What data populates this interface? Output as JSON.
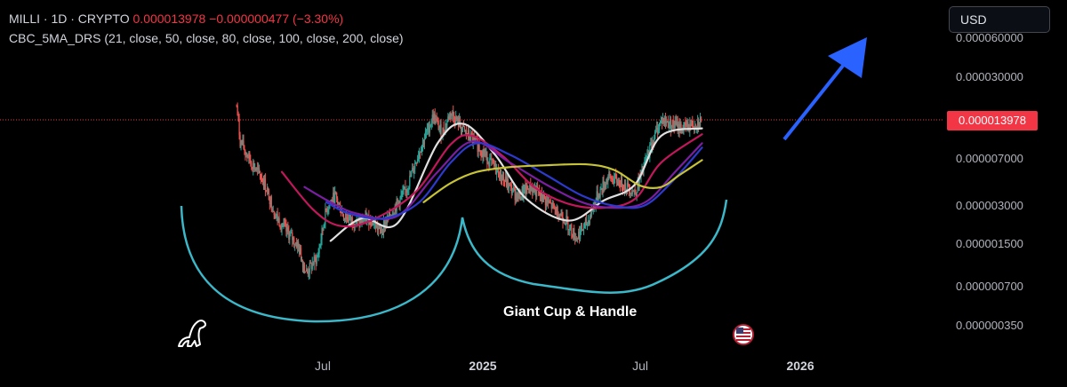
{
  "legend": {
    "symbol": "MILLI · 1D · CRYPTO",
    "price": "0.000013978",
    "change": "−0.000000477 (−3.30%)",
    "indicator": "CBC_5MA_DRS (21, close, 50, close, 80, close, 100, close, 200, close)"
  },
  "currency_button": "USD",
  "price_badge": "0.000013978",
  "annotation": "Giant Cup & Handle",
  "colors": {
    "background": "#000000",
    "up": "#26a69a",
    "down": "#ef5350",
    "price_line": "#f23645",
    "ma21": "#e0e0e0",
    "ma50": "#c2185b",
    "ma80": "#7b1fa2",
    "ma100": "#2c3acf",
    "ma200": "#c7c336",
    "cup": "#3bb8c9",
    "arrow": "#2962ff"
  },
  "icons": {
    "logo": "tradingview-dino-icon",
    "flag": "us-flag-event-icon",
    "arrow": "up-arrow-icon"
  },
  "chart_data": {
    "type": "candlestick",
    "scale": "log",
    "last_price": 1.3978e-05,
    "y_ticks": [
      "0.000060000",
      "0.000030000",
      "0.000007000",
      "0.000003000",
      "0.000001500",
      "0.000000700",
      "0.000000350"
    ],
    "y_tick_values": [
      6e-05,
      3e-05,
      7e-06,
      3e-06,
      1.5e-06,
      7e-07,
      3.5e-07
    ],
    "x_ticks": [
      {
        "label": "Jul",
        "bold": false,
        "date": "2024-07-01"
      },
      {
        "label": "2025",
        "bold": true,
        "date": "2025-01-01"
      },
      {
        "label": "Jul",
        "bold": false,
        "date": "2025-07-01"
      },
      {
        "label": "2026",
        "bold": true,
        "date": "2026-01-01"
      }
    ],
    "price_path": [
      [
        "2024-03-24",
        1.8e-05
      ],
      [
        "2024-03-28",
        9.5e-06
      ],
      [
        "2024-04-10",
        6.5e-06
      ],
      [
        "2024-04-25",
        4.5e-06
      ],
      [
        "2024-05-08",
        2.5e-06
      ],
      [
        "2024-05-20",
        1.9e-06
      ],
      [
        "2024-06-02",
        1.5e-06
      ],
      [
        "2024-06-12",
        9e-07
      ],
      [
        "2024-06-25",
        1.2e-06
      ],
      [
        "2024-07-05",
        2.8e-06
      ],
      [
        "2024-07-15",
        3.6e-06
      ],
      [
        "2024-07-25",
        2.5e-06
      ],
      [
        "2024-08-10",
        2.2e-06
      ],
      [
        "2024-08-25",
        2.4e-06
      ],
      [
        "2024-09-05",
        1.9e-06
      ],
      [
        "2024-09-20",
        2.8e-06
      ],
      [
        "2024-10-05",
        4e-06
      ],
      [
        "2024-10-20",
        8e-06
      ],
      [
        "2024-11-05",
        1.5e-05
      ],
      [
        "2024-11-15",
        1.1e-05
      ],
      [
        "2024-11-25",
        1.6e-05
      ],
      [
        "2024-12-10",
        1.15e-05
      ],
      [
        "2024-12-25",
        9e-06
      ],
      [
        "2025-01-10",
        6.5e-06
      ],
      [
        "2025-01-25",
        4.8e-06
      ],
      [
        "2025-02-10",
        3.5e-06
      ],
      [
        "2025-02-25",
        4.2e-06
      ],
      [
        "2025-03-10",
        3.5e-06
      ],
      [
        "2025-03-25",
        2.8e-06
      ],
      [
        "2025-04-05",
        2.4e-06
      ],
      [
        "2025-04-18",
        1.7e-06
      ],
      [
        "2025-05-01",
        2.2e-06
      ],
      [
        "2025-05-12",
        3.5e-06
      ],
      [
        "2025-05-25",
        5e-06
      ],
      [
        "2025-06-10",
        4.5e-06
      ],
      [
        "2025-06-25",
        3.8e-06
      ],
      [
        "2025-07-05",
        6e-06
      ],
      [
        "2025-07-15",
        9.5e-06
      ],
      [
        "2025-07-25",
        1.4e-05
      ],
      [
        "2025-08-05",
        1.3e-05
      ],
      [
        "2025-08-18",
        1.2e-05
      ],
      [
        "2025-09-01",
        1.3e-05
      ],
      [
        "2025-09-10",
        1.3978e-05
      ]
    ],
    "series": [
      {
        "name": "21",
        "color": "#e0e0e0",
        "points": [
          [
            "2024-07-10",
            1.6e-06
          ],
          [
            "2024-08-15",
            2.4e-06
          ],
          [
            "2024-09-25",
            2.2e-06
          ],
          [
            "2024-11-10",
            9.2e-06
          ],
          [
            "2024-12-10",
            1.3e-05
          ],
          [
            "2025-01-15",
            7.5e-06
          ],
          [
            "2025-02-20",
            3.4e-06
          ],
          [
            "2025-04-10",
            2.3e-06
          ],
          [
            "2025-05-20",
            3.3e-06
          ],
          [
            "2025-06-25",
            4.4e-06
          ],
          [
            "2025-07-25",
            1.05e-05
          ],
          [
            "2025-09-10",
            1.2e-05
          ]
        ]
      },
      {
        "name": "50",
        "color": "#c2185b",
        "points": [
          [
            "2024-05-15",
            5.5e-06
          ],
          [
            "2024-06-20",
            2.8e-06
          ],
          [
            "2024-07-20",
            2.1e-06
          ],
          [
            "2024-08-25",
            2.3e-06
          ],
          [
            "2024-10-15",
            3.8e-06
          ],
          [
            "2024-11-25",
            9e-06
          ],
          [
            "2024-12-20",
            1.05e-05
          ],
          [
            "2025-01-25",
            7.2e-06
          ],
          [
            "2025-03-01",
            4.2e-06
          ],
          [
            "2025-04-10",
            3.1e-06
          ],
          [
            "2025-05-20",
            2.9e-06
          ],
          [
            "2025-06-25",
            3.4e-06
          ],
          [
            "2025-07-25",
            6.5e-06
          ],
          [
            "2025-09-10",
            1.08e-05
          ]
        ]
      },
      {
        "name": "80",
        "color": "#7b1fa2",
        "points": [
          [
            "2024-06-10",
            4.2e-06
          ],
          [
            "2024-07-10",
            3.2e-06
          ],
          [
            "2024-08-10",
            2.6e-06
          ],
          [
            "2024-09-25",
            2.5e-06
          ],
          [
            "2024-11-10",
            5.5e-06
          ],
          [
            "2024-12-20",
            9.5e-06
          ],
          [
            "2025-02-01",
            6.5e-06
          ],
          [
            "2025-03-20",
            4.2e-06
          ],
          [
            "2025-05-01",
            3.1e-06
          ],
          [
            "2025-06-10",
            2.9e-06
          ],
          [
            "2025-07-10",
            3.3e-06
          ],
          [
            "2025-08-10",
            5.5e-06
          ],
          [
            "2025-09-10",
            9.2e-06
          ]
        ]
      },
      {
        "name": "100",
        "color": "#2c3acf",
        "points": [
          [
            "2024-07-05",
            3.2e-06
          ],
          [
            "2024-08-01",
            2.6e-06
          ],
          [
            "2024-09-10",
            2.4e-06
          ],
          [
            "2024-10-20",
            3.2e-06
          ],
          [
            "2024-11-25",
            6.5e-06
          ],
          [
            "2024-12-25",
            9.2e-06
          ],
          [
            "2025-02-01",
            7.5e-06
          ],
          [
            "2025-03-15",
            5.2e-06
          ],
          [
            "2025-04-25",
            3.6e-06
          ],
          [
            "2025-06-01",
            3e-06
          ],
          [
            "2025-07-05",
            3e-06
          ],
          [
            "2025-08-05",
            4.5e-06
          ],
          [
            "2025-09-10",
            8.5e-06
          ]
        ]
      },
      {
        "name": "200",
        "color": "#c7c336",
        "points": [
          [
            "2024-10-25",
            3.2e-06
          ],
          [
            "2024-11-25",
            4.5e-06
          ],
          [
            "2024-12-25",
            5.5e-06
          ],
          [
            "2025-02-01",
            6e-06
          ],
          [
            "2025-03-15",
            6.2e-06
          ],
          [
            "2025-05-01",
            6.3e-06
          ],
          [
            "2025-06-01",
            5.7e-06
          ],
          [
            "2025-07-01",
            4.3e-06
          ],
          [
            "2025-07-25",
            4.2e-06
          ],
          [
            "2025-08-15",
            5.2e-06
          ],
          [
            "2025-09-10",
            6.8e-06
          ]
        ]
      }
    ]
  }
}
